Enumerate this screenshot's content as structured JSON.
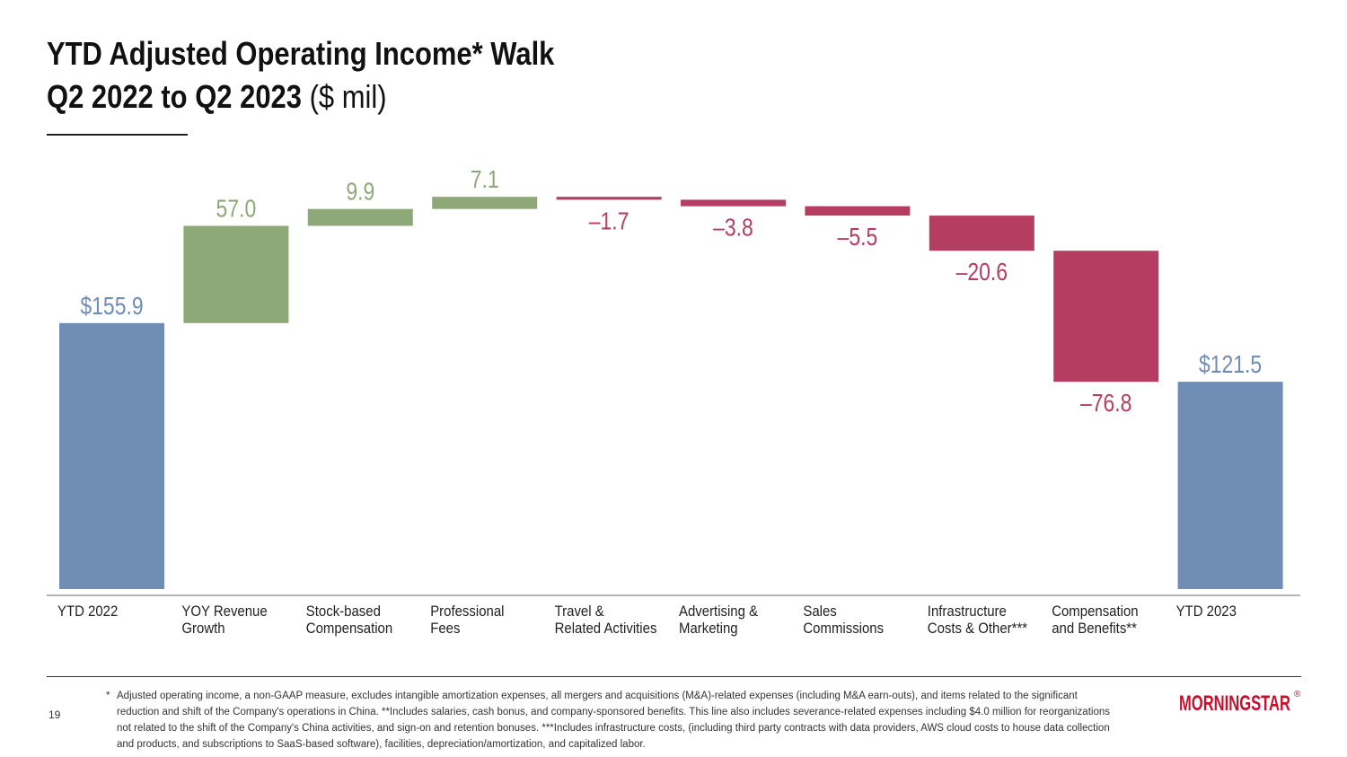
{
  "header": {
    "title_line1": "YTD Adjusted Operating Income* Walk",
    "title_line2": "Q2 2022 to Q2 2023",
    "title_unit": "($ mil)"
  },
  "colors": {
    "total": "#6f8db5",
    "increase": "#8fa877",
    "decrease": "#b53d62",
    "axis": "#888888"
  },
  "chart_data": {
    "type": "waterfall",
    "title": "YTD Adjusted Operating Income* Walk Q2 2022 to Q2 2023 ($ mil)",
    "ylim": [
      0,
      195
    ],
    "bars": [
      {
        "category": "YTD 2022",
        "label_lines": [
          "YTD 2022"
        ],
        "value": 155.9,
        "kind": "total",
        "data_label": "$155.9"
      },
      {
        "category": "YOY Revenue Growth",
        "label_lines": [
          "YOY Revenue",
          "Growth"
        ],
        "value": 57.0,
        "kind": "increase",
        "data_label": "57.0"
      },
      {
        "category": "Stock-based Compensation",
        "label_lines": [
          "Stock-based",
          "Compensation"
        ],
        "value": 9.9,
        "kind": "increase",
        "data_label": "9.9"
      },
      {
        "category": "Professional Fees",
        "label_lines": [
          "Professional",
          "Fees"
        ],
        "value": 7.1,
        "kind": "increase",
        "data_label": "7.1"
      },
      {
        "category": "Travel & Related Activities",
        "label_lines": [
          "Travel &",
          "Related Activities"
        ],
        "value": -1.7,
        "kind": "decrease",
        "data_label": "–1.7"
      },
      {
        "category": "Advertising & Marketing",
        "label_lines": [
          "Advertising &",
          "Marketing"
        ],
        "value": -3.8,
        "kind": "decrease",
        "data_label": "–3.8"
      },
      {
        "category": "Sales Commissions",
        "label_lines": [
          "Sales",
          "Commissions"
        ],
        "value": -5.5,
        "kind": "decrease",
        "data_label": "–5.5"
      },
      {
        "category": "Infrastructure Costs & Other***",
        "label_lines": [
          "Infrastructure",
          "Costs & Other***"
        ],
        "value": -20.6,
        "kind": "decrease",
        "data_label": "–20.6"
      },
      {
        "category": "Compensation and Benefits**",
        "label_lines": [
          "Compensation",
          "and Benefits**"
        ],
        "value": -76.8,
        "kind": "decrease",
        "data_label": "–76.8"
      },
      {
        "category": "YTD 2023",
        "label_lines": [
          "YTD 2023"
        ],
        "value": 121.5,
        "kind": "total",
        "data_label": "$121.5"
      }
    ]
  },
  "footer": {
    "page_number": "19",
    "footnote_marker": "*",
    "footnote": "Adjusted operating income, a non-GAAP measure, excludes intangible amortization expenses, all mergers and acquisitions (M&A)-related expenses (including M&A earn-outs), and items related to the significant reduction and shift of the Company's operations in China. **Includes salaries, cash bonus, and company-sponsored benefits. This line also includes severance-related expenses including $4.0 million for reorganizations not related to the shift of the Company's China activities, and sign-on and retention bonuses. ***Includes infrastructure costs, (including third party contracts with data providers, AWS cloud costs to house data collection and products, and subscriptions to SaaS-based software), facilities, depreciation/amortization, and capitalized labor.",
    "logo_text": "MORNINGSTAR",
    "logo_mark": "®"
  }
}
